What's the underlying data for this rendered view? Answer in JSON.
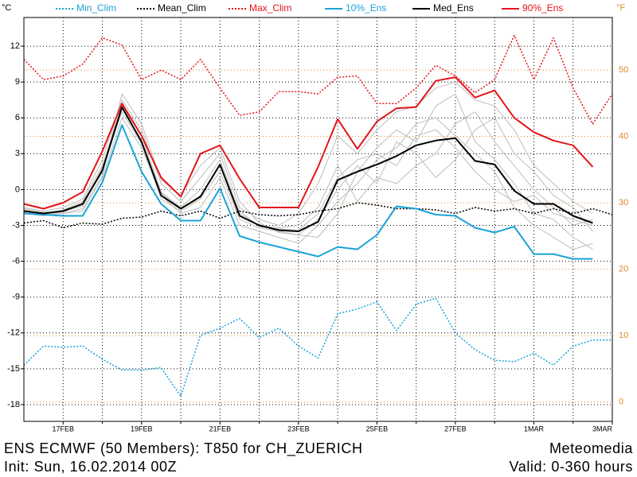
{
  "chart_data": {
    "type": "line",
    "title": "ENS ECMWF (50 Members): T850 for CH_ZUERICH",
    "subtitle": "Init: Sun, 16.02.2014 00Z",
    "source": "Meteomedia",
    "annotation": "Valid: 0-360 hours",
    "ylabel": "°C",
    "y2label": "°F",
    "x": [
      0,
      12,
      24,
      36,
      48,
      60,
      72,
      84,
      96,
      108,
      120,
      132,
      144,
      156,
      168,
      180,
      192,
      204,
      216,
      228,
      240,
      252,
      264,
      276,
      288,
      300,
      312,
      324,
      336,
      348,
      360
    ],
    "xlim": [
      0,
      360
    ],
    "xticks": [
      {
        "value": 24,
        "label": "17FEB"
      },
      {
        "value": 72,
        "label": "19FEB"
      },
      {
        "value": 120,
        "label": "21FEB"
      },
      {
        "value": 168,
        "label": "23FEB"
      },
      {
        "value": 216,
        "label": "25FEB"
      },
      {
        "value": 264,
        "label": "27FEB"
      },
      {
        "value": 312,
        "label": "1MAR"
      },
      {
        "value": 360,
        "label": "3MAR"
      }
    ],
    "xminor": [
      48,
      96,
      144,
      192,
      240,
      288,
      336
    ],
    "ylim": [
      -19.4,
      14.4
    ],
    "yticks": [
      -18,
      -15,
      -12,
      -9,
      -6,
      -3,
      0,
      3,
      6,
      9,
      12
    ],
    "y2lim": [
      -2.9,
      57.9
    ],
    "y2ticks": [
      0,
      10,
      20,
      30,
      40,
      50
    ],
    "y2color": "#e08a2a",
    "grid": true,
    "members_color": "#bdbdbd",
    "members": [
      [
        -1.5,
        -1.8,
        -1.5,
        -0.8,
        2.5,
        7.5,
        5.0,
        0.5,
        -1.0,
        1.0,
        3.0,
        -1.5,
        -2.5,
        -3.0,
        -2.0,
        0.5,
        4.5,
        3.0,
        5.0,
        6.5,
        7.0,
        8.5,
        9.0,
        7.5,
        7.0,
        5.0,
        2.0,
        0.5,
        -1.0,
        -2.0,
        null
      ],
      [
        -2.0,
        -2.2,
        -2.0,
        -1.8,
        1.0,
        6.0,
        3.5,
        -0.5,
        -2.0,
        -1.5,
        1.0,
        -3.0,
        -3.5,
        -4.0,
        -4.5,
        -3.0,
        -1.0,
        0.5,
        2.5,
        3.5,
        5.5,
        6.0,
        4.5,
        3.0,
        1.5,
        -1.5,
        -3.0,
        -4.0,
        -5.0,
        -4.5,
        null
      ],
      [
        -1.8,
        -2.0,
        -1.7,
        -1.0,
        2.0,
        7.0,
        4.5,
        -0.2,
        -1.5,
        0.0,
        2.5,
        -2.0,
        -3.0,
        -3.2,
        -3.0,
        -1.5,
        2.0,
        -1.0,
        1.0,
        0.5,
        2.0,
        3.0,
        5.5,
        6.5,
        4.0,
        2.0,
        0.0,
        -1.5,
        -3.0,
        -2.5,
        null
      ],
      [
        -1.6,
        -1.9,
        -1.8,
        -1.4,
        1.8,
        6.5,
        3.8,
        -0.8,
        -1.8,
        -0.8,
        1.5,
        -2.5,
        -3.2,
        -3.5,
        -3.8,
        -2.5,
        0.0,
        2.0,
        0.5,
        4.0,
        3.0,
        1.0,
        2.5,
        5.0,
        6.0,
        3.0,
        1.5,
        -0.5,
        -1.5,
        -3.5,
        null
      ],
      [
        -1.9,
        -2.1,
        -2.0,
        -1.6,
        1.2,
        8.0,
        5.5,
        0.8,
        -0.5,
        2.0,
        3.5,
        -1.0,
        -2.8,
        -3.6,
        -3.8,
        -4.0,
        -2.0,
        1.5,
        3.5,
        5.0,
        4.0,
        7.0,
        8.0,
        4.0,
        2.5,
        0.5,
        -2.0,
        -2.5,
        -4.0,
        -5.0,
        null
      ],
      [
        -1.7,
        -2.0,
        -1.9,
        -1.2,
        1.5,
        6.8,
        4.0,
        -0.3,
        -1.6,
        -0.5,
        2.0,
        -1.8,
        -3.1,
        -3.3,
        -3.4,
        -2.0,
        1.0,
        2.5,
        3.0,
        2.0,
        4.5,
        5.0,
        3.5,
        1.5,
        0.0,
        -1.0,
        -0.5,
        -2.0,
        -2.5,
        -3.0,
        null
      ]
    ],
    "series": [
      {
        "name": "Min_Clim",
        "color": "#1ba3d6",
        "dash": true,
        "values": [
          -14.7,
          -13.1,
          -13.2,
          -13.1,
          -14.2,
          -15.1,
          -15.1,
          -14.9,
          -17.3,
          -12.2,
          -11.6,
          -10.8,
          -12.4,
          -11.6,
          -13.1,
          -14.1,
          -10.4,
          -10.0,
          -9.4,
          -11.8,
          -9.6,
          -9.1,
          -12.0,
          -13.4,
          -14.3,
          -14.4,
          -13.7,
          -14.7,
          -13.1,
          -12.6,
          -12.6
        ]
      },
      {
        "name": "Mean_Clim",
        "color": "#000000",
        "dash": true,
        "values": [
          -2.8,
          -2.6,
          -3.2,
          -2.8,
          -2.9,
          -2.4,
          -2.3,
          -1.8,
          -2.2,
          -1.8,
          -2.4,
          -1.8,
          -2.1,
          -2.2,
          -2.1,
          -1.8,
          -1.6,
          -1.1,
          -1.3,
          -1.6,
          -1.6,
          -1.7,
          -2.0,
          -1.5,
          -1.8,
          -1.6,
          -2.0,
          -1.6,
          -2.0,
          -1.6,
          -2.1
        ]
      },
      {
        "name": "Max_Clim",
        "color": "#e3151a",
        "dash": true,
        "values": [
          10.9,
          9.2,
          9.5,
          10.5,
          12.7,
          12.1,
          9.2,
          10.0,
          9.2,
          10.9,
          8.5,
          6.2,
          6.5,
          8.2,
          8.2,
          8.0,
          9.4,
          9.5,
          7.2,
          7.2,
          8.5,
          10.4,
          9.5,
          8.1,
          9.2,
          12.9,
          9.2,
          12.7,
          8.5,
          5.5,
          8.0
        ]
      },
      {
        "name": "10%_Ens",
        "color": "#1ba3d6",
        "dash": false,
        "values": [
          -2.0,
          -2.1,
          -2.2,
          -2.2,
          0.6,
          5.4,
          1.5,
          -1.2,
          -2.6,
          -2.6,
          0.1,
          -3.9,
          -4.4,
          -4.8,
          -5.2,
          -5.6,
          -4.8,
          -5.0,
          -3.8,
          -1.4,
          -1.6,
          -2.1,
          -2.2,
          -3.2,
          -3.6,
          -3.1,
          -5.4,
          -5.4,
          -5.8,
          -5.8,
          null
        ]
      },
      {
        "name": "Med_Ens",
        "color": "#000000",
        "dash": false,
        "values": [
          -1.8,
          -2.0,
          -1.8,
          -1.2,
          1.6,
          6.9,
          4.0,
          -0.5,
          -1.6,
          -0.6,
          2.1,
          -2.2,
          -3.0,
          -3.4,
          -3.5,
          -2.7,
          0.8,
          1.5,
          2.1,
          2.8,
          3.7,
          4.1,
          4.3,
          2.4,
          2.1,
          -0.1,
          -1.2,
          -1.2,
          -2.2,
          -2.8,
          null
        ]
      },
      {
        "name": "90%_Ens",
        "color": "#e3151a",
        "dash": false,
        "values": [
          -1.2,
          -1.6,
          -1.1,
          -0.2,
          3.2,
          7.2,
          4.5,
          1.0,
          -0.6,
          3.0,
          3.7,
          0.9,
          -1.5,
          -1.5,
          -1.5,
          1.9,
          5.9,
          3.4,
          5.7,
          6.8,
          6.9,
          9.1,
          9.4,
          7.7,
          8.3,
          6.0,
          4.8,
          4.1,
          3.7,
          1.9,
          null
        ]
      }
    ]
  }
}
